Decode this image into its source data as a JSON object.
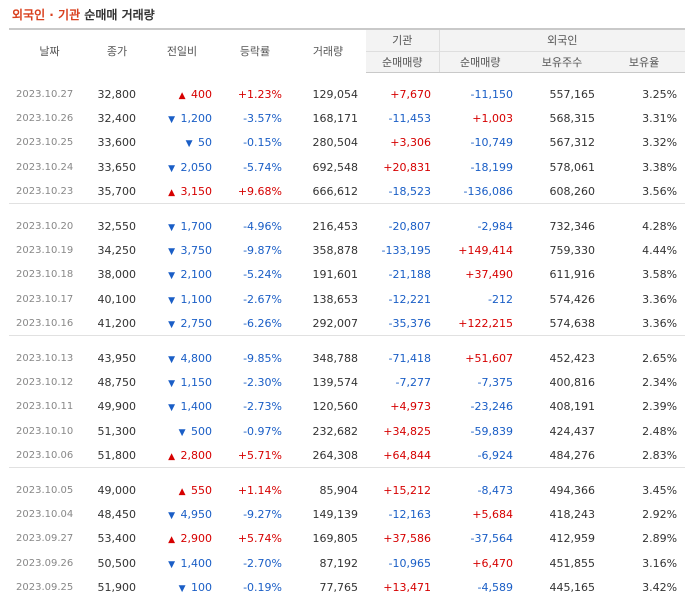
{
  "title": {
    "part1": "외국인 · 기관",
    "part2": " 순매매 거래량"
  },
  "header": {
    "date": "날짜",
    "close": "종가",
    "change": "전일비",
    "rate": "등락률",
    "volume": "거래량",
    "inst_group": "기관",
    "foreign_group": "외국인",
    "inst_net": "순매매량",
    "foreign_net": "순매매량",
    "foreign_hold": "보유주수",
    "foreign_ratio": "보유율"
  },
  "colors": {
    "up": "#d60000",
    "down": "#1a5ec6",
    "title_accent": "#d9401e"
  },
  "rows": [
    {
      "date": "2023.10.27",
      "close": "32,800",
      "dir": "up",
      "change": "400",
      "rate": "+1.23%",
      "volume": "129,054",
      "inst": "+7,670",
      "foreign": "-11,150",
      "hold": "557,165",
      "ratio": "3.25%"
    },
    {
      "date": "2023.10.26",
      "close": "32,400",
      "dir": "down",
      "change": "1,200",
      "rate": "-3.57%",
      "volume": "168,171",
      "inst": "-11,453",
      "foreign": "+1,003",
      "hold": "568,315",
      "ratio": "3.31%"
    },
    {
      "date": "2023.10.25",
      "close": "33,600",
      "dir": "down",
      "change": "50",
      "rate": "-0.15%",
      "volume": "280,504",
      "inst": "+3,306",
      "foreign": "-10,749",
      "hold": "567,312",
      "ratio": "3.32%"
    },
    {
      "date": "2023.10.24",
      "close": "33,650",
      "dir": "down",
      "change": "2,050",
      "rate": "-5.74%",
      "volume": "692,548",
      "inst": "+20,831",
      "foreign": "-18,199",
      "hold": "578,061",
      "ratio": "3.38%"
    },
    {
      "date": "2023.10.23",
      "close": "35,700",
      "dir": "up",
      "change": "3,150",
      "rate": "+9.68%",
      "volume": "666,612",
      "inst": "-18,523",
      "foreign": "-136,086",
      "hold": "608,260",
      "ratio": "3.56%"
    },
    {
      "date": "2023.10.20",
      "close": "32,550",
      "dir": "down",
      "change": "1,700",
      "rate": "-4.96%",
      "volume": "216,453",
      "inst": "-20,807",
      "foreign": "-2,984",
      "hold": "732,346",
      "ratio": "4.28%"
    },
    {
      "date": "2023.10.19",
      "close": "34,250",
      "dir": "down",
      "change": "3,750",
      "rate": "-9.87%",
      "volume": "358,878",
      "inst": "-133,195",
      "foreign": "+149,414",
      "hold": "759,330",
      "ratio": "4.44%"
    },
    {
      "date": "2023.10.18",
      "close": "38,000",
      "dir": "down",
      "change": "2,100",
      "rate": "-5.24%",
      "volume": "191,601",
      "inst": "-21,188",
      "foreign": "+37,490",
      "hold": "611,916",
      "ratio": "3.58%"
    },
    {
      "date": "2023.10.17",
      "close": "40,100",
      "dir": "down",
      "change": "1,100",
      "rate": "-2.67%",
      "volume": "138,653",
      "inst": "-12,221",
      "foreign": "-212",
      "hold": "574,426",
      "ratio": "3.36%"
    },
    {
      "date": "2023.10.16",
      "close": "41,200",
      "dir": "down",
      "change": "2,750",
      "rate": "-6.26%",
      "volume": "292,007",
      "inst": "-35,376",
      "foreign": "+122,215",
      "hold": "574,638",
      "ratio": "3.36%"
    },
    {
      "date": "2023.10.13",
      "close": "43,950",
      "dir": "down",
      "change": "4,800",
      "rate": "-9.85%",
      "volume": "348,788",
      "inst": "-71,418",
      "foreign": "+51,607",
      "hold": "452,423",
      "ratio": "2.65%"
    },
    {
      "date": "2023.10.12",
      "close": "48,750",
      "dir": "down",
      "change": "1,150",
      "rate": "-2.30%",
      "volume": "139,574",
      "inst": "-7,277",
      "foreign": "-7,375",
      "hold": "400,816",
      "ratio": "2.34%"
    },
    {
      "date": "2023.10.11",
      "close": "49,900",
      "dir": "down",
      "change": "1,400",
      "rate": "-2.73%",
      "volume": "120,560",
      "inst": "+4,973",
      "foreign": "-23,246",
      "hold": "408,191",
      "ratio": "2.39%"
    },
    {
      "date": "2023.10.10",
      "close": "51,300",
      "dir": "down",
      "change": "500",
      "rate": "-0.97%",
      "volume": "232,682",
      "inst": "+34,825",
      "foreign": "-59,839",
      "hold": "424,437",
      "ratio": "2.48%"
    },
    {
      "date": "2023.10.06",
      "close": "51,800",
      "dir": "up",
      "change": "2,800",
      "rate": "+5.71%",
      "volume": "264,308",
      "inst": "+64,844",
      "foreign": "-6,924",
      "hold": "484,276",
      "ratio": "2.83%"
    },
    {
      "date": "2023.10.05",
      "close": "49,000",
      "dir": "up",
      "change": "550",
      "rate": "+1.14%",
      "volume": "85,904",
      "inst": "+15,212",
      "foreign": "-8,473",
      "hold": "494,366",
      "ratio": "3.45%"
    },
    {
      "date": "2023.10.04",
      "close": "48,450",
      "dir": "down",
      "change": "4,950",
      "rate": "-9.27%",
      "volume": "149,139",
      "inst": "-12,163",
      "foreign": "+5,684",
      "hold": "418,243",
      "ratio": "2.92%"
    },
    {
      "date": "2023.09.27",
      "close": "53,400",
      "dir": "up",
      "change": "2,900",
      "rate": "+5.74%",
      "volume": "169,805",
      "inst": "+37,586",
      "foreign": "-37,564",
      "hold": "412,959",
      "ratio": "2.89%"
    },
    {
      "date": "2023.09.26",
      "close": "50,500",
      "dir": "down",
      "change": "1,400",
      "rate": "-2.70%",
      "volume": "87,192",
      "inst": "-10,965",
      "foreign": "+6,470",
      "hold": "451,855",
      "ratio": "3.16%"
    },
    {
      "date": "2023.09.25",
      "close": "51,900",
      "dir": "down",
      "change": "100",
      "rate": "-0.19%",
      "volume": "77,765",
      "inst": "+13,471",
      "foreign": "-4,589",
      "hold": "445,165",
      "ratio": "3.42%"
    }
  ]
}
